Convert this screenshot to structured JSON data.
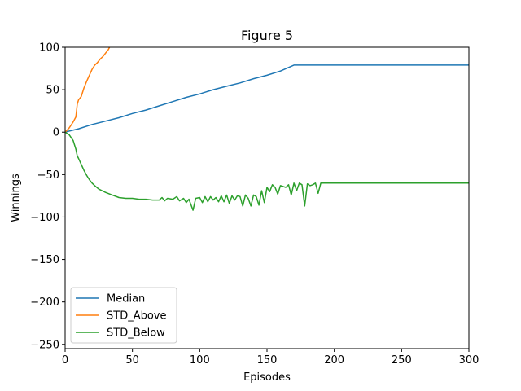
{
  "chart_data": {
    "type": "line",
    "title": "Figure 5",
    "xlabel": "Episodes",
    "ylabel": "Winnings",
    "xlim": [
      0,
      300
    ],
    "ylim": [
      -255,
      100
    ],
    "xticks": [
      0,
      50,
      100,
      150,
      200,
      250,
      300
    ],
    "yticks": [
      -250,
      -200,
      -150,
      -100,
      -50,
      0,
      50,
      100
    ],
    "ytick_labels": [
      "−250",
      "−200",
      "−150",
      "−100",
      "−50",
      "0",
      "50",
      "100"
    ],
    "grid": false,
    "legend_position": "lower-left",
    "series": [
      {
        "name": "Median",
        "color": "#1f77b4",
        "x": [
          0,
          10,
          20,
          30,
          40,
          50,
          60,
          70,
          80,
          90,
          100,
          110,
          120,
          130,
          140,
          150,
          160,
          170,
          180,
          200,
          250,
          300
        ],
        "y": [
          0,
          4,
          9,
          13,
          17,
          22,
          26,
          31,
          36,
          41,
          45,
          50,
          54,
          58,
          63,
          67,
          72,
          79,
          79,
          79,
          79,
          79
        ]
      },
      {
        "name": "STD_Above",
        "color": "#ff7f0e",
        "x": [
          0,
          3,
          6,
          8,
          9,
          10,
          12,
          14,
          16,
          18,
          20,
          22,
          24,
          26,
          28,
          30,
          32,
          33
        ],
        "y": [
          0,
          5,
          12,
          18,
          33,
          38,
          42,
          52,
          60,
          67,
          74,
          79,
          82,
          86,
          89,
          93,
          97,
          100
        ]
      },
      {
        "name": "STD_Below",
        "color": "#2ca02c",
        "x": [
          0,
          3,
          6,
          8,
          9,
          10,
          12,
          14,
          16,
          18,
          20,
          22,
          25,
          30,
          35,
          40,
          45,
          50,
          55,
          60,
          65,
          70,
          72,
          74,
          76,
          80,
          83,
          85,
          88,
          90,
          92,
          95,
          97,
          100,
          102,
          104,
          106,
          108,
          110,
          112,
          114,
          116,
          118,
          120,
          122,
          124,
          126,
          128,
          130,
          132,
          134,
          136,
          138,
          140,
          142,
          144,
          146,
          148,
          150,
          152,
          154,
          156,
          158,
          160,
          162,
          164,
          166,
          168,
          170,
          172,
          174,
          176,
          178,
          180,
          182,
          184,
          186,
          188,
          190,
          200,
          250,
          300
        ],
        "y": [
          0,
          -3,
          -10,
          -20,
          -28,
          -31,
          -38,
          -45,
          -51,
          -56,
          -60,
          -63,
          -67,
          -71,
          -74,
          -77,
          -78,
          -78,
          -79,
          -79,
          -80,
          -80,
          -77,
          -81,
          -78,
          -79,
          -76,
          -81,
          -78,
          -83,
          -79,
          -92,
          -78,
          -77,
          -83,
          -76,
          -82,
          -76,
          -80,
          -77,
          -82,
          -75,
          -82,
          -74,
          -84,
          -75,
          -80,
          -75,
          -76,
          -87,
          -74,
          -78,
          -87,
          -74,
          -76,
          -86,
          -69,
          -83,
          -65,
          -70,
          -62,
          -65,
          -73,
          -63,
          -64,
          -65,
          -62,
          -74,
          -60,
          -69,
          -60,
          -62,
          -87,
          -61,
          -63,
          -62,
          -60,
          -72,
          -60,
          -60,
          -60,
          -60
        ]
      }
    ]
  }
}
